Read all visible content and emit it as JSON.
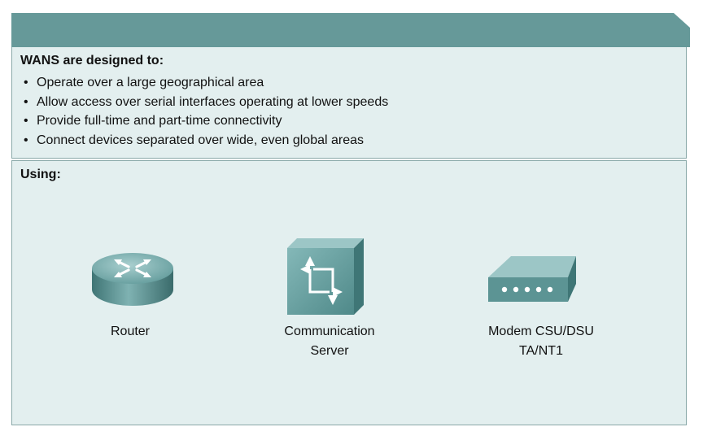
{
  "panel": {
    "title": "WANS are designed to:",
    "bullet_marker": "•",
    "bullets": [
      "Operate over a large geographical area",
      "Allow access over serial interfaces operating at lower speeds",
      "Provide full-time and part-time connectivity",
      "Connect devices separated over wide, even global areas"
    ]
  },
  "using": {
    "label": "Using:",
    "devices": [
      {
        "icon": "router-icon",
        "label_lines": [
          "Router"
        ]
      },
      {
        "icon": "communication-server-icon",
        "label_lines": [
          "Communication",
          "Server"
        ]
      },
      {
        "icon": "modem-csu-dsu-icon",
        "label_lines": [
          "Modem CSU/DSU",
          "TA/NT1"
        ]
      }
    ]
  },
  "colors": {
    "header": "#669999",
    "panel_bg": "#e3efef",
    "border": "#8aa9a9",
    "device": "#5c9494"
  }
}
